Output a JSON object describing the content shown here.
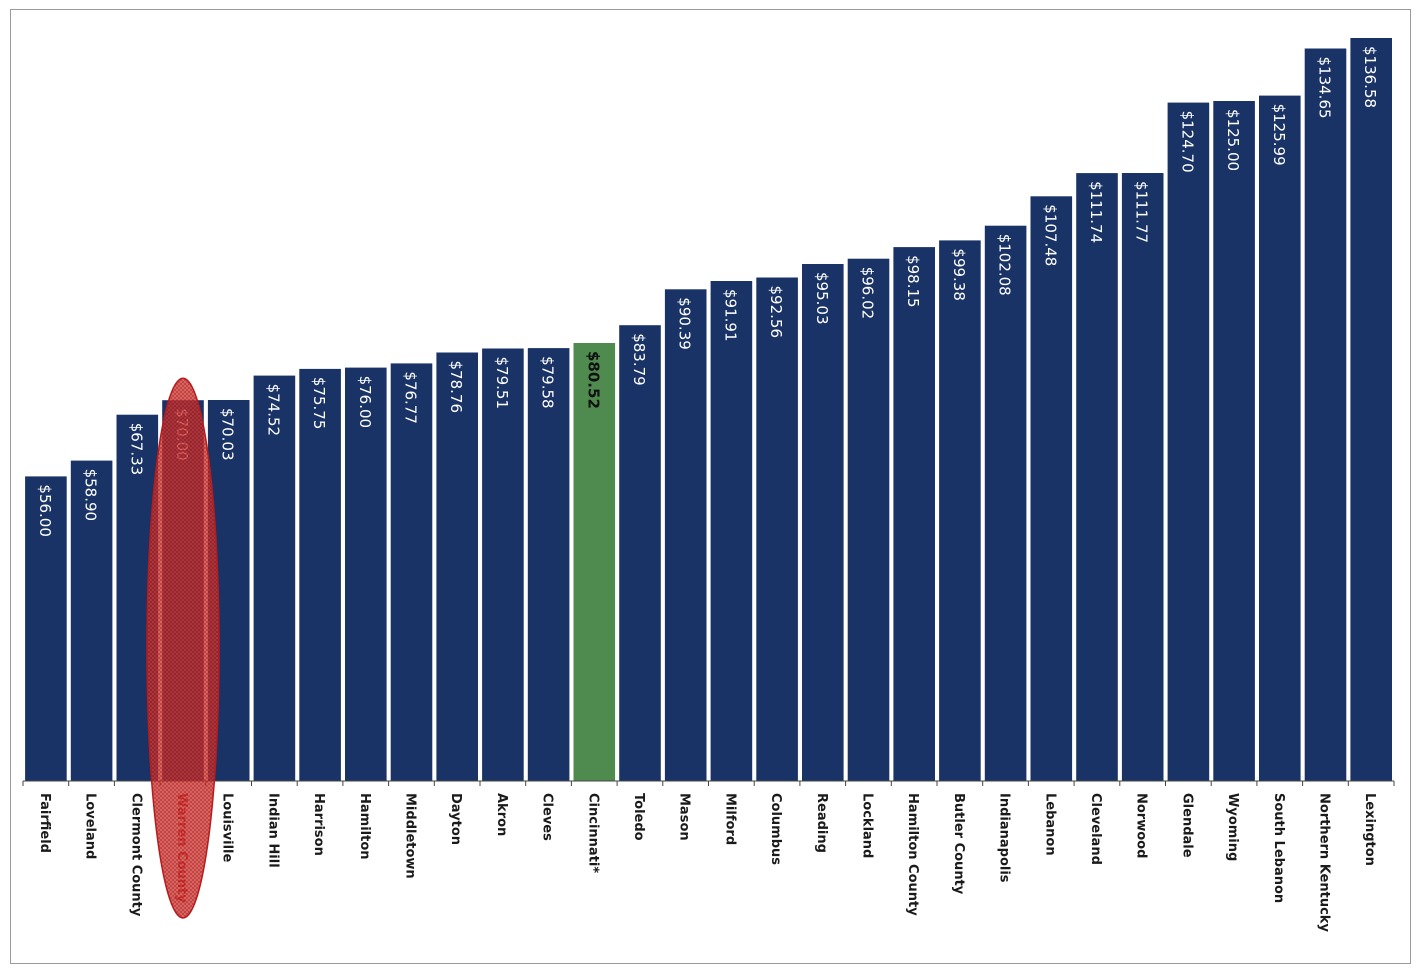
{
  "chart_data": {
    "type": "bar",
    "title": "",
    "xlabel": "",
    "ylabel": "",
    "ylim": [
      0,
      145
    ],
    "grid": false,
    "legend": "none",
    "categories": [
      "Fairfield",
      "Loveland",
      "Clermont County",
      "Warren County",
      "Louisville",
      "Indian Hill",
      "Harrison",
      "Hamilton",
      "Middletown",
      "Dayton",
      "Akron",
      "Cleves",
      "Cincinnati*",
      "Toledo",
      "Mason",
      "Milford",
      "Columbus",
      "Reading",
      "Lockland",
      "Hamilton County",
      "Butler County",
      "Indianapolis",
      "Lebanon",
      "Cleveland",
      "Norwood",
      "Glendale",
      "Wyoming",
      "South Lebanon",
      "Northern Kentucky",
      "Lexington"
    ],
    "values": [
      56.0,
      58.9,
      67.33,
      70.0,
      70.03,
      74.52,
      75.75,
      76.0,
      76.77,
      78.76,
      79.51,
      79.58,
      80.52,
      83.79,
      90.39,
      91.91,
      92.56,
      95.03,
      96.02,
      98.15,
      99.38,
      102.08,
      107.48,
      111.74,
      111.77,
      124.7,
      125.0,
      125.99,
      134.65,
      136.58
    ],
    "value_labels": [
      "$56.00",
      "$58.90",
      "$67.33",
      "$70.00",
      "$70.03",
      "$74.52",
      "$75.75",
      "$76.00",
      "$76.77",
      "$78.76",
      "$79.51",
      "$79.58",
      "$80.52",
      "$83.79",
      "$90.39",
      "$91.91",
      "$92.56",
      "$95.03",
      "$96.02",
      "$98.15",
      "$99.38",
      "$102.08",
      "$107.48",
      "$111.74",
      "$111.77",
      "$124.70",
      "$125.00",
      "$125.99",
      "$134.65",
      "$136.58"
    ],
    "highlight_index": 12,
    "circled_index": 3,
    "colors": {
      "bar": "#1a3366",
      "highlight_bar": "#4f8a4f",
      "circle": "#e53935"
    }
  }
}
